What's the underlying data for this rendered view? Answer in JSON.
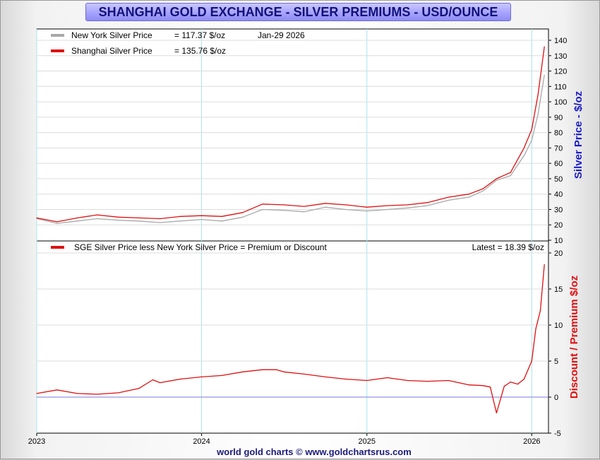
{
  "title": "SHANGHAI GOLD EXCHANGE - SILVER PREMIUMS - USD/OUNCE",
  "footer": "world gold charts © www.goldchartsrus.com",
  "chart_data": [
    {
      "type": "line",
      "ylabel": "Silver Price - $/oz",
      "ylim": [
        10,
        140
      ],
      "yticks": [
        "10",
        "20",
        "30",
        "40",
        "50",
        "60",
        "70",
        "80",
        "90",
        "100",
        "110",
        "120",
        "130",
        "140"
      ],
      "xlim": [
        "2023-01-01",
        "2026-02-07"
      ],
      "xticks": [
        "2023",
        "2024",
        "2025",
        "2026"
      ],
      "grid": true,
      "legend_position": "top-left",
      "legend": [
        {
          "name": "New York Silver Price",
          "value": "= 117.37 $/oz",
          "color": "#a8a8a8"
        },
        {
          "name": "Shanghai Silver Price",
          "value": "= 135.76 $/oz",
          "color": "#e01010"
        }
      ],
      "annotation": "Jan-29  2026",
      "x": [
        "2023-01-01",
        "2023-02-15",
        "2023-04-01",
        "2023-05-15",
        "2023-07-01",
        "2023-08-15",
        "2023-10-01",
        "2023-11-15",
        "2024-01-01",
        "2024-02-15",
        "2024-04-01",
        "2024-05-15",
        "2024-07-01",
        "2024-08-15",
        "2024-10-01",
        "2024-11-15",
        "2025-01-01",
        "2025-02-15",
        "2025-04-01",
        "2025-05-15",
        "2025-07-01",
        "2025-08-15",
        "2025-09-15",
        "2025-10-15",
        "2025-11-15",
        "2025-12-15",
        "2026-01-01",
        "2026-01-15",
        "2026-01-29"
      ],
      "series": [
        {
          "name": "New York Silver Price",
          "color": "#a8a8a8",
          "values": [
            24,
            21,
            22.5,
            24,
            23,
            22.5,
            21.5,
            22.5,
            23.5,
            22.5,
            25,
            30,
            29.5,
            28.5,
            31.5,
            30,
            29,
            30,
            31,
            32.5,
            36,
            38,
            42,
            49,
            52,
            65,
            75,
            92,
            117.37
          ]
        },
        {
          "name": "Shanghai Silver Price",
          "color": "#e01010",
          "values": [
            24.5,
            22,
            24.5,
            26.5,
            25,
            24.5,
            24,
            25.5,
            26,
            25.5,
            28,
            33.5,
            33,
            32,
            34,
            33,
            31.5,
            32.5,
            33,
            34.5,
            38,
            40,
            43.5,
            50,
            54,
            70,
            82,
            105,
            135.76
          ]
        }
      ]
    },
    {
      "type": "line",
      "ylabel": "Discount / Premium $/oz",
      "ylim": [
        -5,
        20
      ],
      "yticks": [
        "-5",
        "0",
        "5",
        "10",
        "15",
        "20"
      ],
      "xlim": [
        "2023-01-01",
        "2026-02-07"
      ],
      "xticks": [
        "2023",
        "2024",
        "2025",
        "2026"
      ],
      "grid": true,
      "legend_position": "top-left",
      "legend": [
        {
          "name": "SGE Silver Price less New York Silver Price = Premium or Discount",
          "color": "#e01010"
        }
      ],
      "annotation": "Latest = 18.39 $/oz",
      "zero_line": true,
      "x": [
        "2023-01-01",
        "2023-02-15",
        "2023-04-01",
        "2023-05-15",
        "2023-07-01",
        "2023-08-15",
        "2023-09-15",
        "2023-10-01",
        "2023-11-15",
        "2024-01-01",
        "2024-02-15",
        "2024-04-01",
        "2024-05-15",
        "2024-06-15",
        "2024-07-01",
        "2024-08-15",
        "2024-10-01",
        "2024-11-15",
        "2025-01-01",
        "2025-02-15",
        "2025-04-01",
        "2025-05-15",
        "2025-07-01",
        "2025-08-15",
        "2025-09-15",
        "2025-10-01",
        "2025-10-15",
        "2025-11-01",
        "2025-11-15",
        "2025-12-01",
        "2025-12-15",
        "2026-01-01",
        "2026-01-10",
        "2026-01-20",
        "2026-01-29"
      ],
      "series": [
        {
          "name": "Premium / Discount",
          "color": "#e01010",
          "values": [
            0.5,
            1,
            0.5,
            0.4,
            0.6,
            1.2,
            2.4,
            2,
            2.5,
            2.8,
            3,
            3.5,
            3.8,
            3.8,
            3.5,
            3.2,
            2.8,
            2.5,
            2.3,
            2.7,
            2.3,
            2.2,
            2.3,
            1.7,
            1.6,
            1.4,
            -2.2,
            1.5,
            2.1,
            1.8,
            2.5,
            5,
            9.5,
            12,
            18.39
          ]
        }
      ]
    }
  ]
}
